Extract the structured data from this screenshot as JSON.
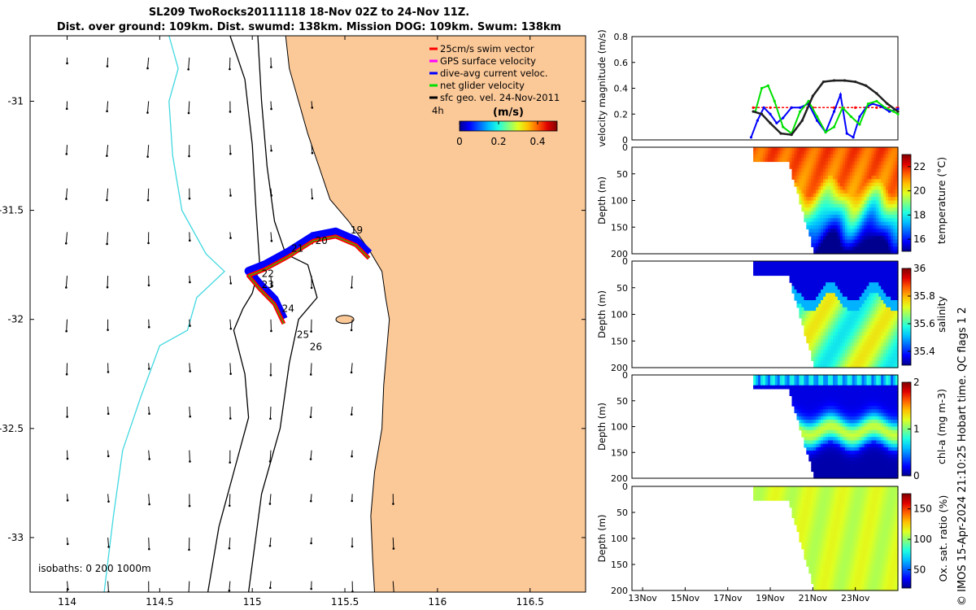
{
  "title_line1": "SL209 TwoRocks20111118 18-Nov 02Z to 24-Nov 11Z.",
  "title_line2": "Dist. over ground: 109km. Dist. swumd: 138km. Mission DOG: 109km. Swum: 138km",
  "credit": "© IMOS 15-Apr-2024 21:10:25 Hobart time. QC flags 1  2",
  "colors": {
    "land": "#fbc898",
    "coast": "#000000",
    "iso200": "#40d8e0",
    "swim": "#ff0000",
    "gps": "#ff00ff",
    "diveavg": "#0000ff",
    "net": "#00e000",
    "sfcgeo": "#000000",
    "velocity_grey": "#202020"
  },
  "chart_data": [
    {
      "type": "map",
      "name": "glider track map",
      "xlim": [
        113.8,
        116.8
      ],
      "ylim": [
        -33.25,
        -30.7
      ],
      "xticks": [
        "114",
        "114.5",
        "115",
        "115.5",
        "116",
        "116.5"
      ],
      "yticks": [
        "-31",
        "-31.5",
        "-32",
        "-32.5",
        "-33"
      ],
      "legend": [
        {
          "label": "25cm/s swim vector",
          "color": "#ff0000"
        },
        {
          "label": "GPS surface velocity",
          "color": "#ff00ff"
        },
        {
          "label": "dive-avg current veloc.",
          "color": "#0000ff"
        },
        {
          "label": "net glider velocity",
          "color": "#00e000"
        },
        {
          "label": "sfc geo. vel. 24-Nov-2011",
          "color": "#000000"
        }
      ],
      "scale_label": "4h",
      "colorbar_label": "(m/s)",
      "colorbar_ticks": [
        "0",
        "0.2",
        "0.4"
      ],
      "colorbar_range": [
        0,
        0.5
      ],
      "isobaths_label": "isobaths: 0    200   1000m",
      "day_labels": [
        {
          "day": "19",
          "lon": 115.53,
          "lat": -31.605
        },
        {
          "day": "20",
          "lon": 115.34,
          "lat": -31.655
        },
        {
          "day": "21",
          "lon": 115.21,
          "lat": -31.69
        },
        {
          "day": "22",
          "lon": 115.05,
          "lat": -31.805
        },
        {
          "day": "23",
          "lon": 115.05,
          "lat": -31.855
        },
        {
          "day": "24",
          "lon": 115.16,
          "lat": -31.965
        },
        {
          "day": "25",
          "lon": 115.24,
          "lat": -32.085
        },
        {
          "day": "26",
          "lon": 115.31,
          "lat": -32.14
        }
      ],
      "track": [
        [
          115.63,
          -31.72
        ],
        [
          115.56,
          -31.66
        ],
        [
          115.45,
          -31.62
        ],
        [
          115.33,
          -31.64
        ],
        [
          115.2,
          -31.71
        ],
        [
          115.07,
          -31.77
        ],
        [
          114.98,
          -31.8
        ],
        [
          115.04,
          -31.86
        ],
        [
          115.12,
          -31.93
        ],
        [
          115.17,
          -32.02
        ]
      ]
    },
    {
      "type": "line",
      "name": "velocity magnitude",
      "ylabel": "velocity magnitude (m/s)",
      "ylim": [
        0,
        0.8
      ],
      "yticks": [
        "0",
        "0.2",
        "0.4",
        "0.6",
        "0.8"
      ],
      "xlim_days": [
        12.5,
        25.0
      ],
      "series": [
        {
          "name": "swim",
          "color": "#ff0000",
          "x": [
            18.2,
            19,
            20,
            21,
            22,
            23,
            24,
            25
          ],
          "y": [
            0.25,
            0.25,
            0.25,
            0.25,
            0.25,
            0.25,
            0.25,
            0.25
          ]
        },
        {
          "name": "dive-avg",
          "color": "#0000ff",
          "x": [
            18.1,
            18.4,
            18.7,
            19.0,
            19.3,
            19.6,
            20.0,
            20.4,
            20.8,
            21.2,
            21.6,
            22.0,
            22.3,
            22.6,
            22.9,
            23.2,
            23.5,
            23.8,
            24.2,
            24.6,
            25.0
          ],
          "y": [
            0.02,
            0.15,
            0.25,
            0.2,
            0.13,
            0.17,
            0.25,
            0.25,
            0.28,
            0.15,
            0.06,
            0.22,
            0.35,
            0.05,
            0.02,
            0.18,
            0.25,
            0.28,
            0.26,
            0.22,
            0.24
          ]
        },
        {
          "name": "net",
          "color": "#00e000",
          "x": [
            18.3,
            18.6,
            18.9,
            19.2,
            19.6,
            20.0,
            20.4,
            20.8,
            21.2,
            21.6,
            22.0,
            22.4,
            22.8,
            23.2,
            23.6,
            24.0,
            24.4,
            24.8,
            25.0
          ],
          "y": [
            0.22,
            0.4,
            0.42,
            0.3,
            0.1,
            0.05,
            0.22,
            0.3,
            0.18,
            0.06,
            0.1,
            0.25,
            0.18,
            0.12,
            0.28,
            0.3,
            0.25,
            0.22,
            0.2
          ]
        },
        {
          "name": "sfc geo",
          "color": "#202020",
          "x": [
            18.2,
            18.6,
            19.0,
            19.5,
            20.0,
            20.5,
            21.0,
            21.5,
            22.0,
            22.5,
            23.0,
            23.5,
            24.0,
            24.5,
            25.0
          ],
          "y": [
            0.22,
            0.2,
            0.13,
            0.05,
            0.04,
            0.15,
            0.34,
            0.45,
            0.46,
            0.46,
            0.45,
            0.42,
            0.36,
            0.28,
            0.22
          ]
        }
      ]
    },
    {
      "type": "heatmap",
      "name": "temperature",
      "ylabel": "Depth (m)",
      "cbar_label": "temperature (°C)",
      "ylim": [
        200,
        0
      ],
      "yticks": [
        "0",
        "50",
        "100",
        "150",
        "200"
      ],
      "cbar_ticks": [
        "16",
        "18",
        "20",
        "22"
      ],
      "crange": [
        15,
        23
      ]
    },
    {
      "type": "heatmap",
      "name": "salinity",
      "ylabel": "Depth (m)",
      "cbar_label": "salinity",
      "ylim": [
        200,
        0
      ],
      "yticks": [
        "0",
        "50",
        "100",
        "150",
        "200"
      ],
      "cbar_ticks": [
        "35.4",
        "35.6",
        "35.8",
        "36"
      ],
      "crange": [
        35.3,
        36.0
      ]
    },
    {
      "type": "heatmap",
      "name": "chl-a",
      "ylabel": "Depth (m)",
      "cbar_label": "chl-a (mg m-3)",
      "ylim": [
        200,
        0
      ],
      "yticks": [
        "0",
        "50",
        "100",
        "150",
        "200"
      ],
      "cbar_ticks": [
        "0",
        "1",
        "2"
      ],
      "crange": [
        0,
        2
      ]
    },
    {
      "type": "heatmap",
      "name": "oxygen",
      "ylabel": "Depth (m)",
      "cbar_label": "Ox. sat. ratio (%)",
      "ylim": [
        200,
        0
      ],
      "yticks": [
        "0",
        "50",
        "100",
        "150",
        "200"
      ],
      "cbar_ticks": [
        "50",
        "100",
        "150"
      ],
      "crange": [
        20,
        175
      ],
      "xticks": [
        "13Nov",
        "15Nov",
        "17Nov",
        "19Nov",
        "21Nov",
        "23Nov"
      ]
    }
  ]
}
